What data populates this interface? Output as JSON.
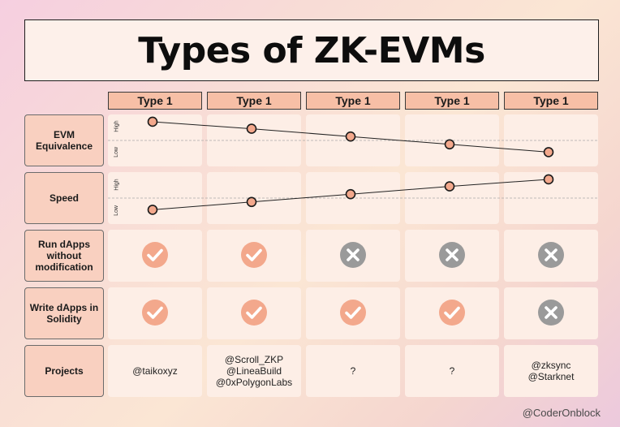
{
  "title": "Types of ZK-EVMs",
  "columns": [
    "Type 1",
    "Type 1",
    "Type 1",
    "Type 1",
    "Type 1"
  ],
  "rows": {
    "evm_equivalence": {
      "label": "EVM Equivalence",
      "high_label": "High",
      "low_label": "Low"
    },
    "speed": {
      "label": "Speed",
      "high_label": "High",
      "low_label": "Low"
    },
    "run_dapps": {
      "label": "Run dApps without modification",
      "values": [
        "check",
        "check",
        "cross",
        "cross",
        "cross"
      ]
    },
    "solidity": {
      "label": "Write dApps in Solidity",
      "values": [
        "check",
        "check",
        "check",
        "check",
        "cross"
      ]
    },
    "projects": {
      "label": "Projects",
      "values": [
        [
          "@taikoxyz"
        ],
        [
          "@Scroll_ZKP",
          "@LineaBuild",
          "@0xPolygonLabs"
        ],
        [
          "?"
        ],
        [
          "?"
        ],
        [
          "@zksync",
          "@Starknet"
        ]
      ]
    }
  },
  "chart_data": [
    {
      "type": "line",
      "name": "EVM Equivalence",
      "categories": [
        "Type 1",
        "Type 1",
        "Type 1",
        "Type 1",
        "Type 1"
      ],
      "values": [
        0.98,
        0.8,
        0.6,
        0.4,
        0.2
      ],
      "ylim": [
        0,
        1
      ]
    },
    {
      "type": "line",
      "name": "Speed",
      "categories": [
        "Type 1",
        "Type 1",
        "Type 1",
        "Type 1",
        "Type 1"
      ],
      "values": [
        0.2,
        0.4,
        0.6,
        0.8,
        0.98
      ],
      "ylim": [
        0,
        1
      ]
    }
  ],
  "colors": {
    "check": "#f3a88c",
    "cross": "#9a9a9a",
    "point_fill": "#f3a88c",
    "header": "#f7bfa6"
  },
  "footer": "@CoderOnblock"
}
